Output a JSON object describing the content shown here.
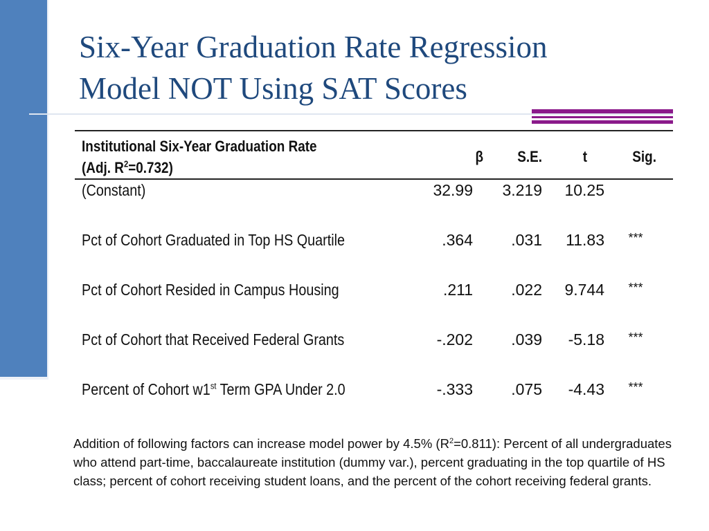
{
  "slide": {
    "title_line1": "Six-Year Graduation Rate Regression",
    "title_line2": "Model NOT Using SAT Scores",
    "accent_color": "#8b1a8b",
    "bar_color": "#4f81bd",
    "title_color": "#1f497d"
  },
  "table": {
    "header": {
      "label_line1": "Institutional Six-Year Graduation Rate",
      "label_line2_pre": "(Adj. R",
      "label_line2_sup": "2",
      "label_line2_post": "=0.732)",
      "beta": "β",
      "se": "S.E.",
      "t": "t",
      "sig": "Sig."
    },
    "rows": [
      {
        "label": "(Constant)",
        "beta": "32.99",
        "se": "3.219",
        "t": "10.25",
        "sig": ""
      },
      {
        "label": "Pct of Cohort Graduated in Top HS Quartile",
        "beta": ".364",
        "se": ".031",
        "t": "11.83",
        "sig": "***"
      },
      {
        "label": "Pct of Cohort Resided in Campus Housing",
        "beta": ".211",
        "se": ".022",
        "t": "9.744",
        "sig": "***"
      },
      {
        "label": "Pct of Cohort that Received Federal Grants",
        "beta": "-.202",
        "se": ".039",
        "t": "-5.18",
        "sig": "***"
      },
      {
        "label_pre": "Percent of Cohort w1",
        "label_sup": "st",
        "label_post": " Term GPA Under 2.0",
        "beta": "-.333",
        "se": ".075",
        "t": "-4.43",
        "sig": "***"
      }
    ]
  },
  "footnote": {
    "pre": "Addition of following factors can increase model power by 4.5% (R",
    "sup": "2",
    "post": "=0.811): Percent of all undergraduates who attend part-time, baccalaureate institution (dummy var.), percent graduating  in the top quartile of HS class; percent of cohort receiving student loans, and the percent of the cohort receiving federal grants."
  }
}
